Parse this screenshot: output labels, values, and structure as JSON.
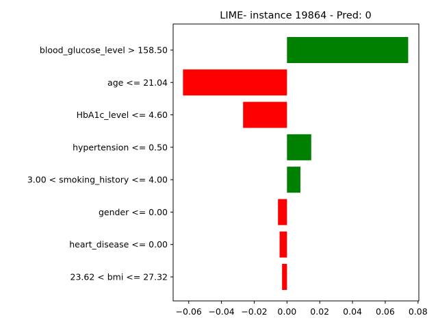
{
  "chart_data": {
    "type": "bar",
    "orientation": "horizontal",
    "title": "LIME- instance 19864 - Pred: 0",
    "xlabel": "",
    "ylabel": "",
    "categories": [
      "blood_glucose_level > 158.50",
      "age <= 21.04",
      "HbA1c_level <= 4.60",
      "hypertension <= 0.50",
      "3.00 < smoking_history <= 4.00",
      "gender <= 0.00",
      "heart_disease <= 0.00",
      "23.62 < bmi <= 27.32"
    ],
    "values": [
      0.074,
      -0.0635,
      -0.0268,
      0.0148,
      0.0082,
      -0.0055,
      -0.0045,
      -0.003
    ],
    "xlim": [
      -0.0695,
      0.0805
    ],
    "xticks": [
      -0.06,
      -0.04,
      -0.02,
      0.0,
      0.02,
      0.04,
      0.06,
      0.08
    ],
    "xtick_labels": [
      "−0.06",
      "−0.04",
      "−0.02",
      "0.00",
      "0.02",
      "0.04",
      "0.06",
      "0.08"
    ],
    "grid": false,
    "legend": "none",
    "colors": {
      "positive": "#008000",
      "negative": "#ff0000"
    }
  }
}
